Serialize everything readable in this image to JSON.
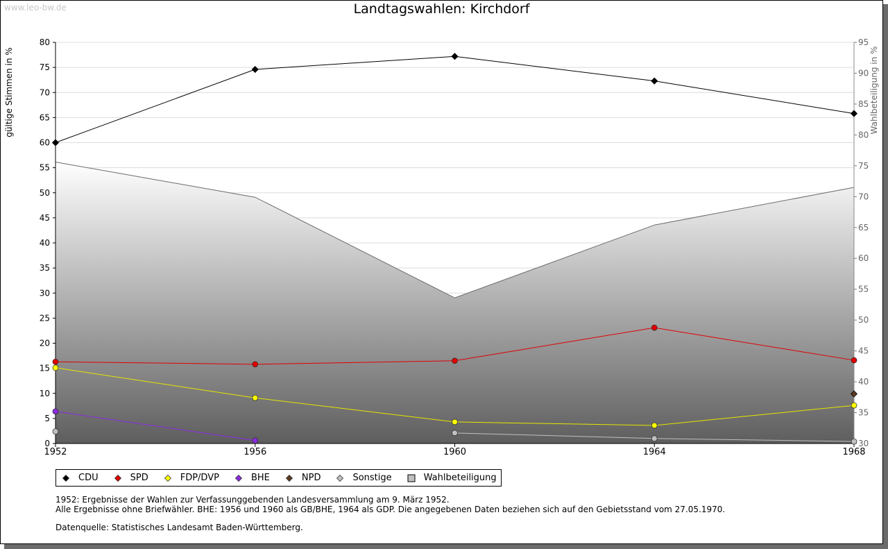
{
  "watermark": "www.leo-bw.de",
  "title": "Landtagswahlen: Kirchdorf",
  "chart_data": {
    "type": "line",
    "title": "Landtagswahlen: Kirchdorf",
    "x": [
      "1952",
      "1956",
      "1960",
      "1964",
      "1968"
    ],
    "ylabel": "gültige Stimmen in %",
    "ylabel_right": "Wahlbeteiligung in %",
    "ylim": [
      0,
      80
    ],
    "ylim_right": [
      30,
      95
    ],
    "yticks": [
      0,
      5,
      10,
      15,
      20,
      25,
      30,
      35,
      40,
      45,
      50,
      55,
      60,
      65,
      70,
      75,
      80
    ],
    "yticks_right": [
      30,
      35,
      40,
      45,
      50,
      55,
      60,
      65,
      70,
      75,
      80,
      85,
      90,
      95
    ],
    "grid": true,
    "legend_position": "bottom",
    "series": [
      {
        "name": "CDU",
        "color": "#000000",
        "values": [
          60.0,
          74.6,
          77.2,
          72.3,
          65.8
        ]
      },
      {
        "name": "SPD",
        "color": "#e00000",
        "values": [
          16.3,
          15.8,
          16.5,
          23.1,
          16.6
        ]
      },
      {
        "name": "FDP/DVP",
        "color": "#ffff00",
        "values": [
          15.1,
          9.1,
          4.3,
          3.6,
          7.6
        ]
      },
      {
        "name": "BHE",
        "color": "#8a2be2",
        "values": [
          6.4,
          0.6,
          null,
          null,
          null
        ]
      },
      {
        "name": "NPD",
        "color": "#5a3a22",
        "values": [
          null,
          null,
          null,
          null,
          9.9
        ]
      },
      {
        "name": "Sonstige",
        "color": "#c0c0c0",
        "values": [
          2.4,
          null,
          2.1,
          1.0,
          0.4
        ]
      }
    ],
    "area_series": {
      "name": "Wahlbeteiligung",
      "axis": "right",
      "values": [
        75.6,
        69.9,
        53.6,
        65.4,
        71.5
      ]
    }
  },
  "legend": [
    {
      "label": "CDU",
      "color": "#000000",
      "shape": "diamond"
    },
    {
      "label": "SPD",
      "color": "#e00000",
      "shape": "diamond"
    },
    {
      "label": "FDP/DVP",
      "color": "#ffff00",
      "shape": "diamond"
    },
    {
      "label": "BHE",
      "color": "#8a2be2",
      "shape": "diamond"
    },
    {
      "label": "NPD",
      "color": "#5a3a22",
      "shape": "diamond"
    },
    {
      "label": "Sonstige",
      "color": "#c0c0c0",
      "shape": "diamond"
    },
    {
      "label": "Wahlbeteiligung",
      "color": "#c0c0c0",
      "shape": "square"
    }
  ],
  "notes": {
    "line1": "1952: Ergebnisse der Wahlen zur Verfassunggebenden Landesversammlung am 9. März 1952.",
    "line2": "Alle Ergebnisse ohne Briefwähler. BHE: 1956 und 1960 als GB/BHE, 1964 als GDP. Die angegebenen Daten beziehen sich auf den Gebietsstand vom 27.05.1970.",
    "source": "Datenquelle: Statistisches Landesamt Baden-Württemberg."
  }
}
